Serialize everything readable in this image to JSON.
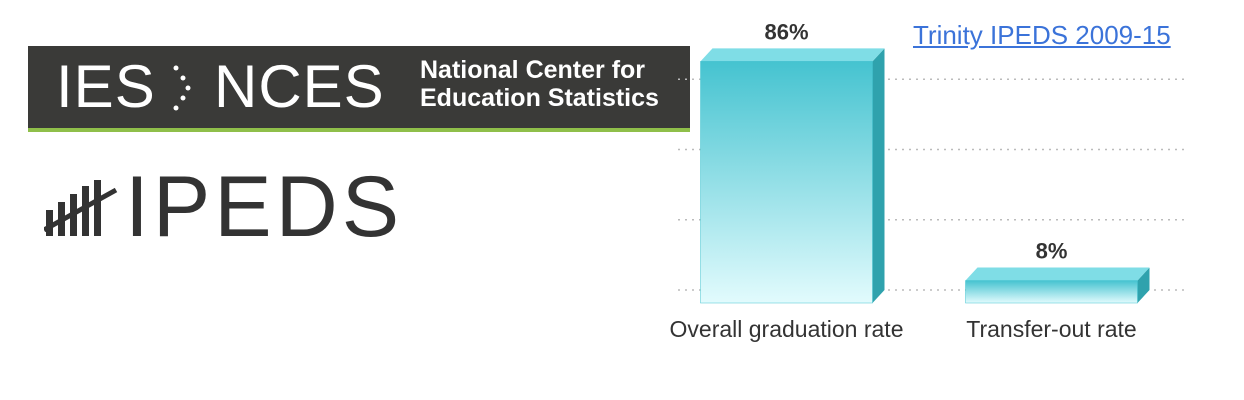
{
  "logo": {
    "ies": "IES",
    "nces": "NCES",
    "name_lines": [
      "National Center for",
      "Education Statistics"
    ],
    "ipeds": "IPEDS"
  },
  "link": "Trinity IPEDS 2009-15",
  "chart_data": {
    "type": "bar3d",
    "categories": [
      "Overall graduation rate",
      "Transfer-out rate"
    ],
    "values": [
      86,
      8
    ],
    "value_labels": [
      "86%",
      "8%"
    ],
    "ylim": [
      0,
      100
    ],
    "yticks": [
      0,
      25,
      50,
      75
    ],
    "grid": true,
    "color": "#45c3d0"
  }
}
